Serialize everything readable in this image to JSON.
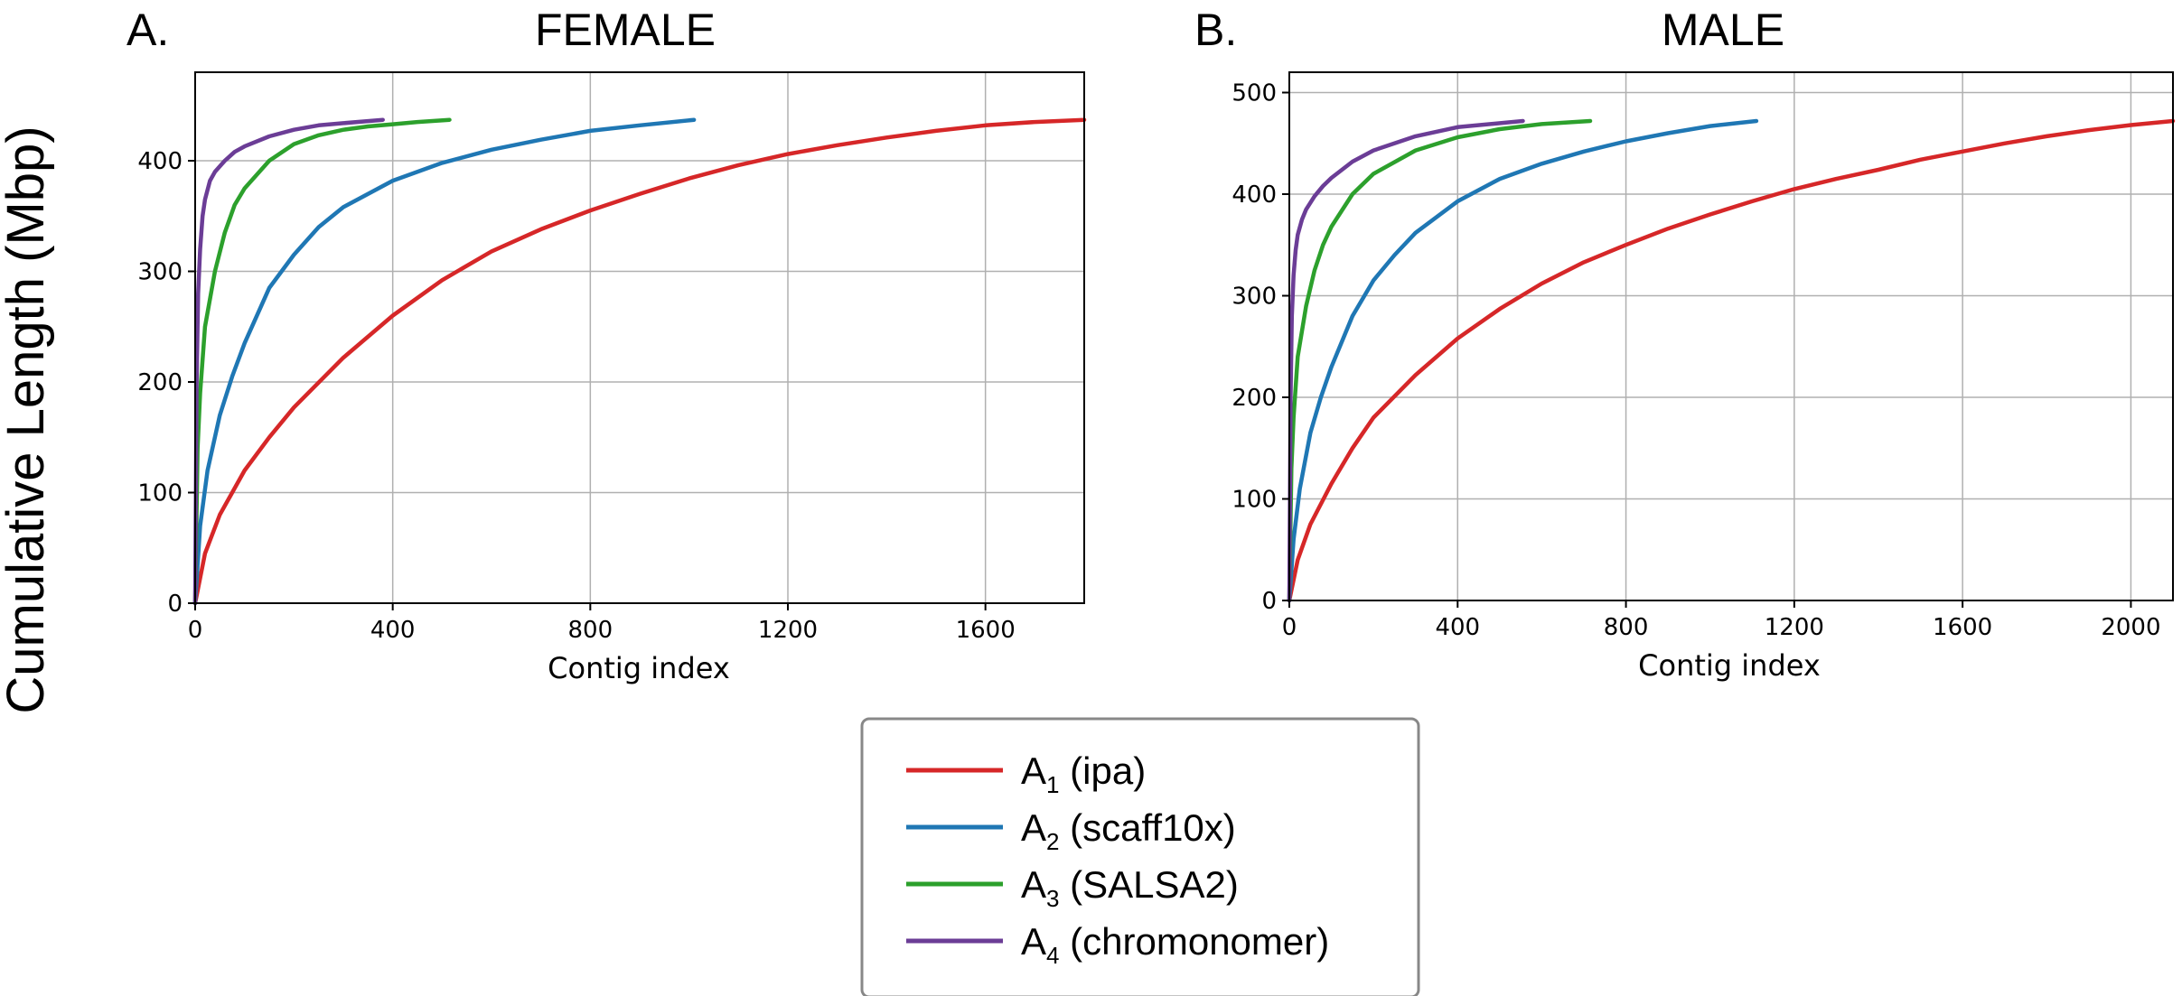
{
  "figure": {
    "ylabel": "Cumulative Length (Mbp)"
  },
  "legend": [
    {
      "base": "A",
      "sub": "1",
      "label": "(ipa)",
      "color": "#d62728"
    },
    {
      "base": "A",
      "sub": "2",
      "label": "(scaff10x)",
      "color": "#1f77b4"
    },
    {
      "base": "A",
      "sub": "3",
      "label": "(SALSA2)",
      "color": "#2ca02c"
    },
    {
      "base": "A",
      "sub": "4",
      "label": "(chromonomer)",
      "color": "#6b3d96"
    }
  ],
  "chart_data": [
    {
      "type": "line",
      "panel_label": "A.",
      "title": "FEMALE",
      "xlabel": "Contig index",
      "ylabel": "",
      "xlim": [
        0,
        1800
      ],
      "ylim": [
        0,
        480
      ],
      "xticks": [
        0,
        400,
        800,
        1200,
        1600
      ],
      "yticks": [
        0,
        100,
        200,
        300,
        400
      ],
      "grid": true,
      "series": [
        {
          "name": "A1 (ipa)",
          "color": "#d62728",
          "x": [
            0,
            20,
            50,
            100,
            150,
            200,
            300,
            400,
            500,
            600,
            700,
            800,
            900,
            1000,
            1100,
            1200,
            1300,
            1400,
            1500,
            1600,
            1700,
            1800
          ],
          "y": [
            0,
            45,
            80,
            120,
            150,
            177,
            222,
            260,
            292,
            318,
            338,
            355,
            370,
            384,
            396,
            406,
            414,
            421,
            427,
            432,
            435,
            437
          ]
        },
        {
          "name": "A2 (scaff10x)",
          "color": "#1f77b4",
          "x": [
            0,
            10,
            25,
            50,
            75,
            100,
            150,
            200,
            250,
            300,
            400,
            500,
            600,
            700,
            800,
            900,
            1010
          ],
          "y": [
            0,
            70,
            120,
            170,
            205,
            235,
            285,
            315,
            340,
            358,
            382,
            398,
            410,
            419,
            427,
            432,
            437
          ]
        },
        {
          "name": "A3 (SALSA2)",
          "color": "#2ca02c",
          "x": [
            0,
            5,
            10,
            20,
            40,
            60,
            80,
            100,
            150,
            200,
            250,
            300,
            350,
            400,
            450,
            515
          ],
          "y": [
            0,
            140,
            190,
            250,
            300,
            335,
            360,
            375,
            400,
            415,
            423,
            428,
            431,
            433,
            435,
            437
          ]
        },
        {
          "name": "A4 (chromonomer)",
          "color": "#6b3d96",
          "x": [
            0,
            3,
            6,
            10,
            15,
            20,
            30,
            40,
            60,
            80,
            100,
            150,
            200,
            250,
            300,
            380
          ],
          "y": [
            0,
            200,
            280,
            320,
            350,
            365,
            382,
            390,
            400,
            408,
            413,
            422,
            428,
            432,
            434,
            437
          ]
        }
      ]
    },
    {
      "type": "line",
      "panel_label": "B.",
      "title": "MALE",
      "xlabel": "Contig index",
      "ylabel": "",
      "xlim": [
        0,
        2100
      ],
      "ylim": [
        0,
        520
      ],
      "xticks": [
        0,
        400,
        800,
        1200,
        1600,
        2000
      ],
      "yticks": [
        0,
        100,
        200,
        300,
        400,
        500
      ],
      "grid": true,
      "series": [
        {
          "name": "A1 (ipa)",
          "color": "#d62728",
          "x": [
            0,
            20,
            50,
            100,
            150,
            200,
            300,
            400,
            500,
            600,
            700,
            800,
            900,
            1000,
            1100,
            1200,
            1300,
            1400,
            1500,
            1600,
            1700,
            1800,
            1900,
            2000,
            2100
          ],
          "y": [
            0,
            40,
            75,
            115,
            150,
            180,
            222,
            258,
            287,
            312,
            333,
            350,
            366,
            380,
            393,
            405,
            415,
            424,
            434,
            442,
            450,
            457,
            463,
            468,
            472
          ]
        },
        {
          "name": "A2 (scaff10x)",
          "color": "#1f77b4",
          "x": [
            0,
            10,
            25,
            50,
            75,
            100,
            150,
            200,
            250,
            300,
            400,
            500,
            600,
            700,
            800,
            900,
            1000,
            1110
          ],
          "y": [
            0,
            60,
            110,
            165,
            200,
            230,
            280,
            315,
            340,
            362,
            393,
            415,
            430,
            442,
            452,
            460,
            467,
            472
          ]
        },
        {
          "name": "A3 (SALSA2)",
          "color": "#2ca02c",
          "x": [
            0,
            5,
            10,
            20,
            40,
            60,
            80,
            100,
            150,
            200,
            300,
            400,
            500,
            600,
            715
          ],
          "y": [
            0,
            130,
            180,
            240,
            290,
            325,
            350,
            368,
            400,
            420,
            443,
            456,
            464,
            469,
            472
          ]
        },
        {
          "name": "A4 (chromonomer)",
          "color": "#6b3d96",
          "x": [
            0,
            3,
            6,
            10,
            15,
            20,
            30,
            40,
            60,
            80,
            100,
            150,
            200,
            300,
            400,
            555
          ],
          "y": [
            0,
            200,
            280,
            320,
            345,
            360,
            375,
            385,
            398,
            408,
            416,
            432,
            443,
            457,
            466,
            472
          ]
        }
      ]
    }
  ]
}
